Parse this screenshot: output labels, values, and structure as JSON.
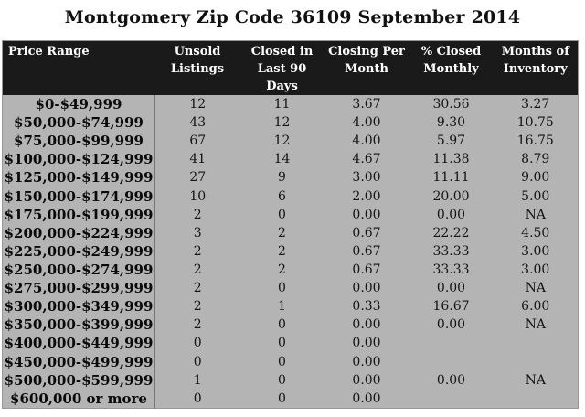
{
  "chart_data": {
    "type": "table",
    "title": "Montgomery Zip Code 36109 September 2014",
    "columns": [
      "Price Range",
      "Unsold\nListings",
      "Closed in\nLast 90 Days",
      "Closing Per\nMonth",
      "% Closed\nMonthly",
      "Months of\nInventory"
    ],
    "rows": [
      [
        "$0-$49,999",
        "12",
        "11",
        "3.67",
        "30.56",
        "3.27"
      ],
      [
        "$50,000-$74,999",
        "43",
        "12",
        "4.00",
        "9.30",
        "10.75"
      ],
      [
        "$75,000-$99,999",
        "67",
        "12",
        "4.00",
        "5.97",
        "16.75"
      ],
      [
        "$100,000-$124,999",
        "41",
        "14",
        "4.67",
        "11.38",
        "8.79"
      ],
      [
        "$125,000-$149,999",
        "27",
        "9",
        "3.00",
        "11.11",
        "9.00"
      ],
      [
        "$150,000-$174,999",
        "10",
        "6",
        "2.00",
        "20.00",
        "5.00"
      ],
      [
        "$175,000-$199,999",
        "2",
        "0",
        "0.00",
        "0.00",
        "NA"
      ],
      [
        "$200,000-$224,999",
        "3",
        "2",
        "0.67",
        "22.22",
        "4.50"
      ],
      [
        "$225,000-$249,999",
        "2",
        "2",
        "0.67",
        "33.33",
        "3.00"
      ],
      [
        "$250,000-$274,999",
        "2",
        "2",
        "0.67",
        "33.33",
        "3.00"
      ],
      [
        "$275,000-$299,999",
        "2",
        "0",
        "0.00",
        "0.00",
        "NA"
      ],
      [
        "$300,000-$349,999",
        "2",
        "1",
        "0.33",
        "16.67",
        "6.00"
      ],
      [
        "$350,000-$399,999",
        "2",
        "0",
        "0.00",
        "0.00",
        "NA"
      ],
      [
        "$400,000-$449,999",
        "0",
        "0",
        "0.00",
        "",
        ""
      ],
      [
        "$450,000-$499,999",
        "0",
        "0",
        "0.00",
        "",
        ""
      ],
      [
        "$500,000-$599,999",
        "1",
        "0",
        "0.00",
        "0.00",
        "NA"
      ],
      [
        "$600,000 or more",
        "0",
        "0",
        "0.00",
        "",
        ""
      ]
    ]
  },
  "colors": {
    "page_bg": "#ffffff",
    "title_text": "#111111",
    "header_bg": "#1a1a1a",
    "header_text": "#ffffff",
    "body_bg": "#b4b4b4",
    "row_text": "#141414",
    "divider": "#787878",
    "table_border": "#979797"
  }
}
